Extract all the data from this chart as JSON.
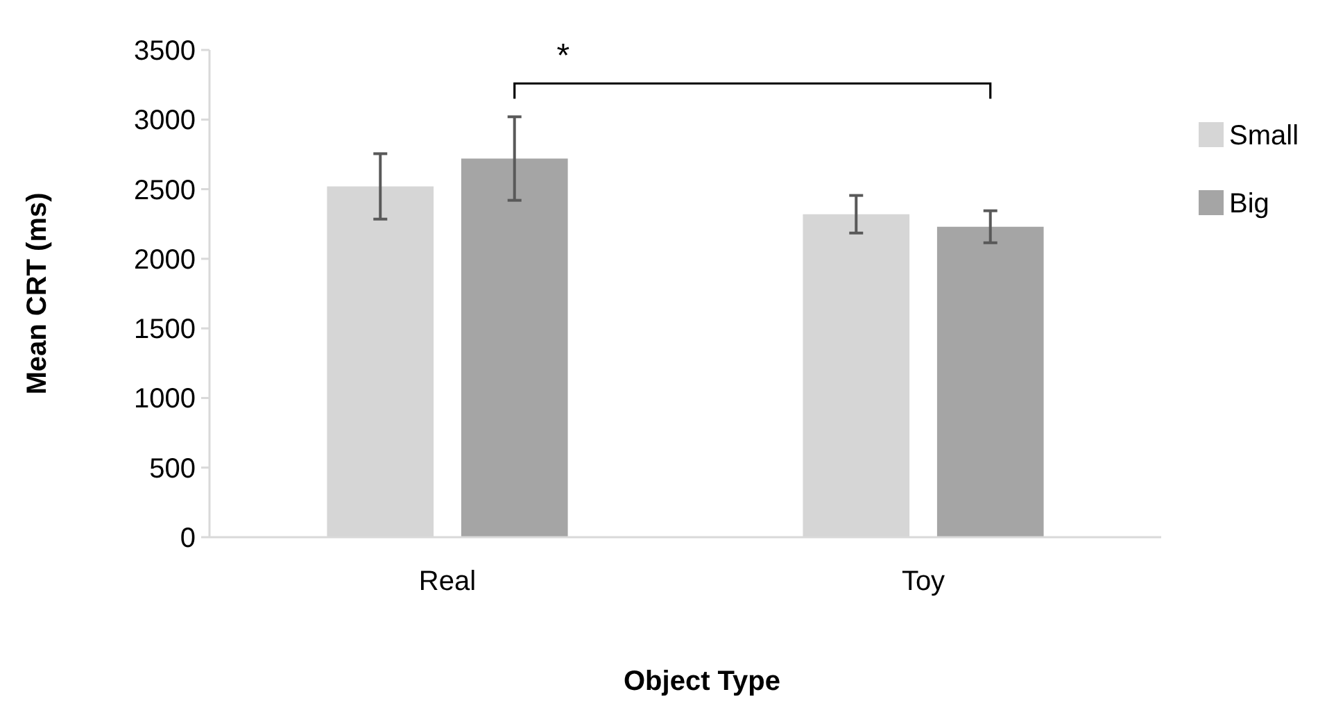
{
  "chart_data": {
    "type": "bar",
    "xlabel": "Object Type",
    "ylabel": "Mean CRT (ms)",
    "categories": [
      "Real",
      "Toy"
    ],
    "series": [
      {
        "name": "Small",
        "color": "#d6d6d6",
        "values": [
          2520,
          2320
        ],
        "errors": [
          235,
          135
        ]
      },
      {
        "name": "Big",
        "color": "#a5a5a5",
        "values": [
          2720,
          2230
        ],
        "errors": [
          300,
          115
        ]
      }
    ],
    "ylim": [
      0,
      3500
    ],
    "yticks": [
      0,
      500,
      1000,
      1500,
      2000,
      2500,
      3000,
      3500
    ],
    "grid": false,
    "legend": "right",
    "annotations": [
      "*"
    ]
  }
}
